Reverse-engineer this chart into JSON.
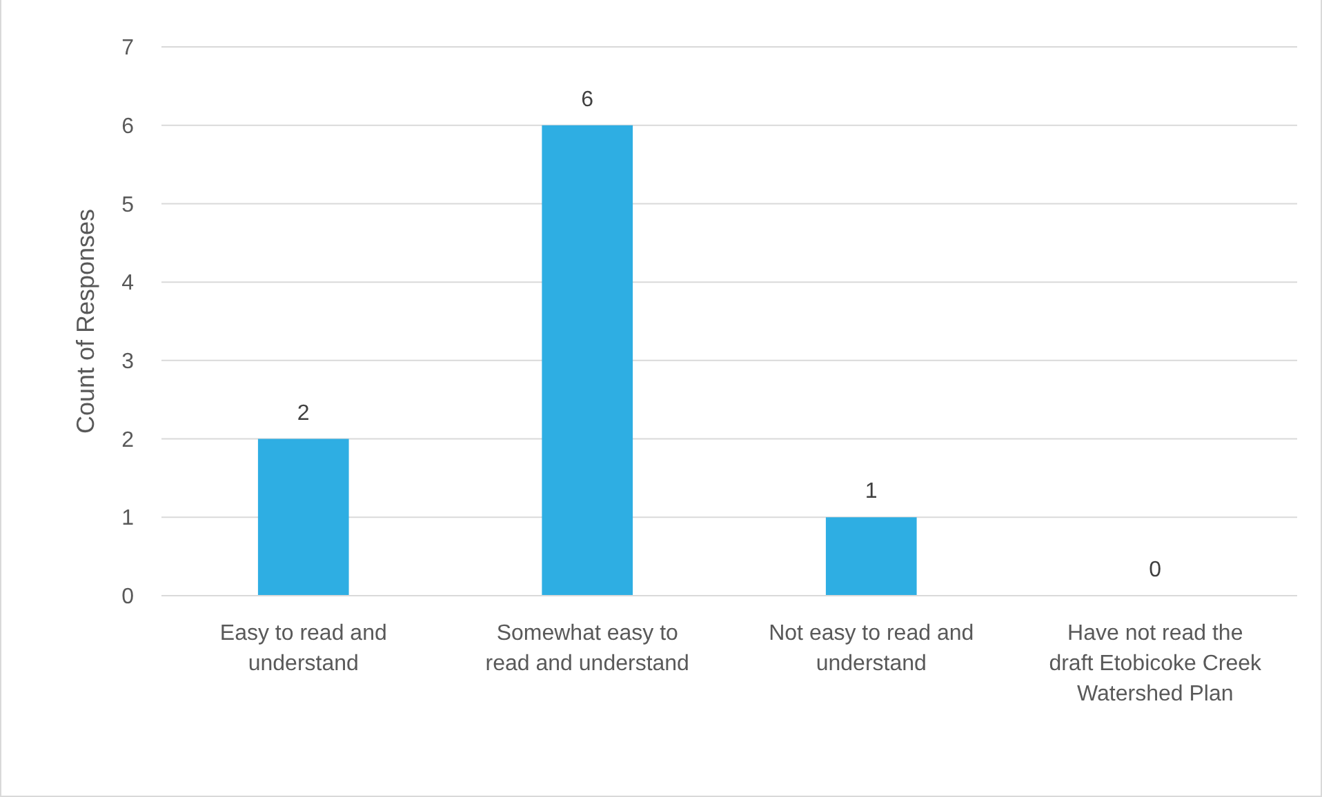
{
  "chart_data": {
    "type": "bar",
    "ylabel": "Count of Responses",
    "categories": [
      "Easy to read and understand",
      "Somewhat easy to read and understand",
      "Not easy to read and understand",
      "Have not read the draft Etobicoke Creek Watershed Plan"
    ],
    "values": [
      2,
      6,
      1,
      0
    ],
    "color": "#2eaee3",
    "ylim": [
      0,
      7
    ],
    "yticks": [
      0,
      1,
      2,
      3,
      4,
      5,
      6,
      7
    ],
    "grid": "y",
    "data_labels": true
  }
}
